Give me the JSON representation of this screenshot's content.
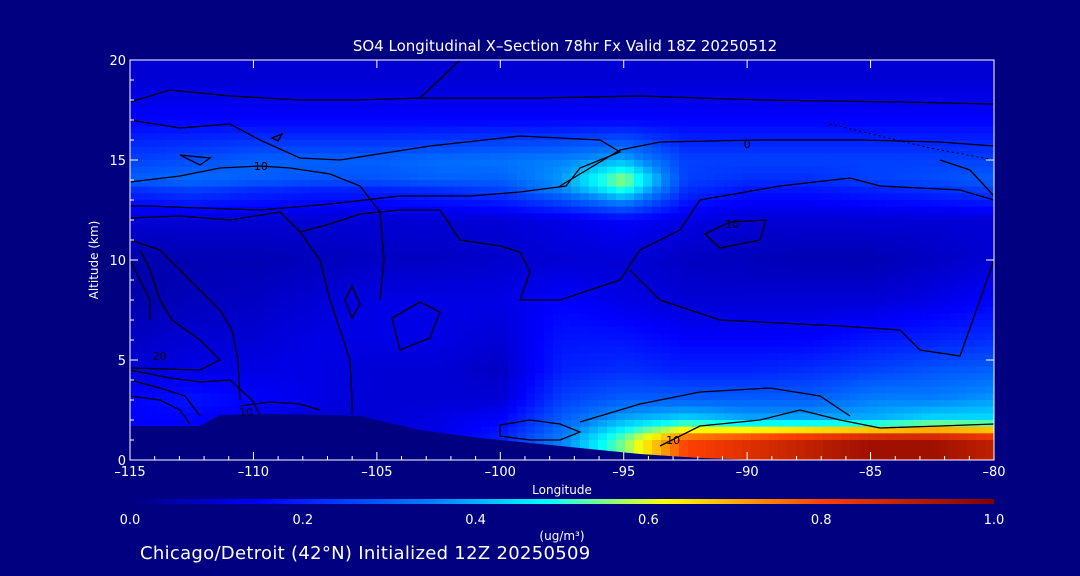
{
  "chart_data": {
    "type": "heatmap",
    "title": "SO4 Longitudinal X–Section 78hr  Fx Valid 18Z 20250512",
    "xlabel": "Longitude",
    "ylabel": "Altitude (km)",
    "xlim": [
      -115,
      -80
    ],
    "ylim": [
      0,
      20
    ],
    "x_ticks": [
      -115,
      -110,
      -105,
      -100,
      -95,
      -90,
      -85,
      -80
    ],
    "x_tick_labels": [
      "–115",
      "–110",
      "–105",
      "–100",
      "–95",
      "–90",
      "–85",
      "–80"
    ],
    "y_ticks": [
      0,
      5,
      10,
      15,
      20
    ],
    "y_tick_labels": [
      "0",
      "5",
      "10",
      "15",
      "20"
    ],
    "colorbar": {
      "label": "(ug/m³)",
      "min": 0.0,
      "max": 1.0,
      "tick_values": [
        0.0,
        0.2,
        0.4,
        0.6,
        0.8,
        1.0
      ],
      "tick_labels": [
        "0.0",
        "0.2",
        "0.4",
        "0.6",
        "0.8",
        "1.0"
      ],
      "colormap": "blue-cyan-yellow-red"
    },
    "concentration_field": {
      "lon": [
        -115,
        -112.5,
        -110,
        -107.5,
        -105,
        -102.5,
        -100,
        -97.5,
        -95,
        -92.5,
        -90,
        -87.5,
        -85,
        -82.5,
        -80
      ],
      "alt": [
        19,
        17,
        15,
        14,
        13.5,
        12,
        10,
        8,
        6,
        4.5,
        3,
        2,
        1
      ],
      "values": [
        [
          0.1,
          0.1,
          0.1,
          0.1,
          0.1,
          0.1,
          0.1,
          0.1,
          0.1,
          0.1,
          0.1,
          0.1,
          0.1,
          0.1,
          0.1
        ],
        [
          0.15,
          0.15,
          0.15,
          0.15,
          0.15,
          0.15,
          0.15,
          0.15,
          0.15,
          0.15,
          0.15,
          0.15,
          0.15,
          0.15,
          0.15
        ],
        [
          0.25,
          0.27,
          0.3,
          0.3,
          0.3,
          0.32,
          0.33,
          0.35,
          0.4,
          0.25,
          0.25,
          0.25,
          0.25,
          0.25,
          0.25
        ],
        [
          0.3,
          0.32,
          0.3,
          0.28,
          0.28,
          0.3,
          0.3,
          0.38,
          0.58,
          0.25,
          0.22,
          0.22,
          0.25,
          0.27,
          0.3
        ],
        [
          0.22,
          0.25,
          0.22,
          0.2,
          0.2,
          0.22,
          0.25,
          0.35,
          0.5,
          0.22,
          0.18,
          0.18,
          0.2,
          0.22,
          0.25
        ],
        [
          0.1,
          0.1,
          0.1,
          0.1,
          0.1,
          0.1,
          0.1,
          0.12,
          0.15,
          0.12,
          0.1,
          0.1,
          0.1,
          0.1,
          0.1
        ],
        [
          0.05,
          0.06,
          0.06,
          0.07,
          0.08,
          0.08,
          0.09,
          0.1,
          0.1,
          0.08,
          0.07,
          0.06,
          0.06,
          0.08,
          0.1
        ],
        [
          0.05,
          0.07,
          0.08,
          0.1,
          0.12,
          0.12,
          0.12,
          0.15,
          0.12,
          0.1,
          0.1,
          0.1,
          0.1,
          0.12,
          0.15
        ],
        [
          0.08,
          0.1,
          0.1,
          0.12,
          0.12,
          0.12,
          0.1,
          0.18,
          0.18,
          0.15,
          0.15,
          0.15,
          0.18,
          0.2,
          0.22
        ],
        [
          0.1,
          0.12,
          0.12,
          0.12,
          0.1,
          0.1,
          0.08,
          0.2,
          0.22,
          0.2,
          0.2,
          0.22,
          0.25,
          0.28,
          0.3
        ],
        [
          0.15,
          0.18,
          0.15,
          0.12,
          0.1,
          0.1,
          0.1,
          0.25,
          0.3,
          0.3,
          0.3,
          0.3,
          0.35,
          0.35,
          0.38
        ],
        [
          0.15,
          0.15,
          0.12,
          0.1,
          0.1,
          0.12,
          0.15,
          0.3,
          0.4,
          0.45,
          0.4,
          0.4,
          0.4,
          0.45,
          0.45
        ],
        [
          0.15,
          0.15,
          0.12,
          0.1,
          0.1,
          0.12,
          0.2,
          0.35,
          0.55,
          0.8,
          0.85,
          0.9,
          0.95,
          0.95,
          0.9
        ]
      ]
    },
    "contour_labels": [
      {
        "text": "10",
        "lon": -109.7,
        "alt": 14.7
      },
      {
        "text": "0",
        "lon": -90.0,
        "alt": 15.8
      },
      {
        "text": "10",
        "lon": -90.6,
        "alt": 11.8
      },
      {
        "text": "20",
        "lon": -113.8,
        "alt": 5.2
      },
      {
        "text": "10",
        "lon": -110.3,
        "alt": 2.4
      },
      {
        "text": "10",
        "lon": -93.0,
        "alt": 1.0
      }
    ]
  },
  "footer": {
    "text": "Chicago/Detroit (42°N) Initialized 12Z 20250509"
  }
}
